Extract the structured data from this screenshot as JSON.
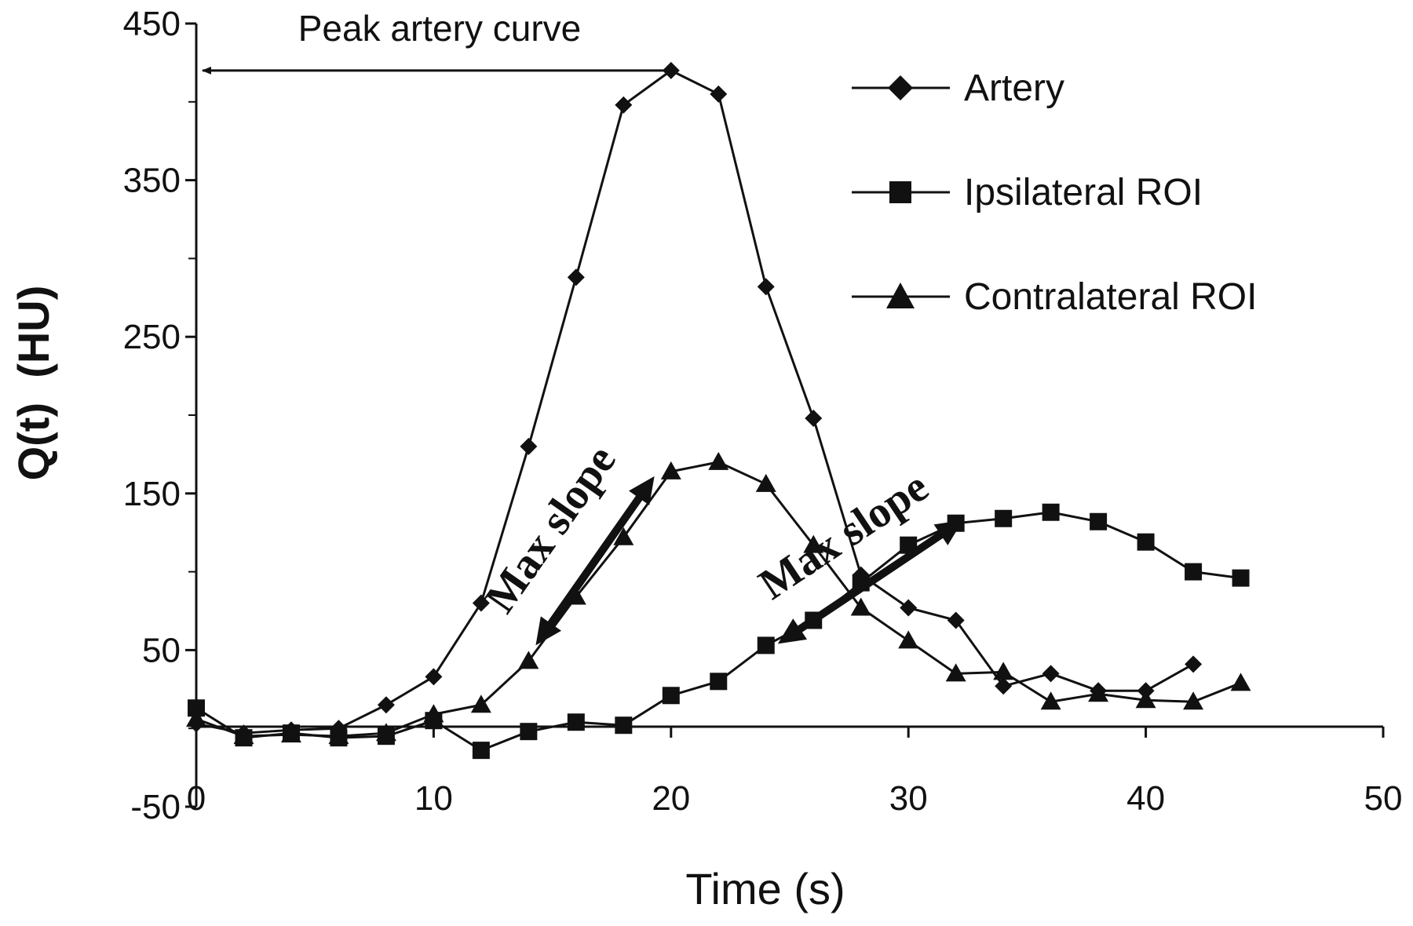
{
  "chart_data": {
    "type": "line",
    "title": "",
    "xlabel": "Time (s)",
    "ylabel": "Q(t)  (HU)",
    "xlim": [
      0,
      50
    ],
    "ylim": [
      -50,
      450
    ],
    "x_ticks": [
      0,
      10,
      20,
      30,
      40,
      50
    ],
    "y_ticks": [
      -50,
      50,
      150,
      250,
      350,
      450
    ],
    "x_tick_labels": [
      "0",
      "10",
      "20",
      "30",
      "40",
      "50"
    ],
    "y_tick_labels": [
      "-50",
      "50",
      "150",
      "250",
      "350",
      "450"
    ],
    "grid": false,
    "legend_position": "top-right",
    "series": [
      {
        "name": "Artery",
        "marker": "diamond",
        "color": "#111111",
        "x": [
          0,
          2,
          4,
          6,
          8,
          10,
          12,
          14,
          16,
          18,
          20,
          22,
          24,
          26,
          28,
          30,
          32,
          34,
          36,
          38,
          40,
          42
        ],
        "y": [
          3,
          -3,
          -1,
          0,
          15,
          33,
          80,
          180,
          288,
          398,
          420,
          405,
          282,
          198,
          98,
          77,
          69,
          27,
          35,
          24,
          24,
          41
        ]
      },
      {
        "name": "Ipsilateral ROI",
        "marker": "square",
        "color": "#111111",
        "x": [
          0,
          2,
          4,
          6,
          8,
          10,
          12,
          14,
          16,
          18,
          20,
          22,
          24,
          26,
          28,
          30,
          32,
          34,
          36,
          38,
          40,
          42,
          44
        ],
        "y": [
          13,
          -6,
          -3,
          -6,
          -5,
          5,
          -14,
          -2,
          4,
          2,
          21,
          30,
          53,
          69,
          93,
          117,
          131,
          134,
          138,
          132,
          119,
          100,
          96
        ]
      },
      {
        "name": "Contralateral ROI",
        "marker": "triangle",
        "color": "#111111",
        "x": [
          0,
          2,
          4,
          6,
          8,
          10,
          12,
          14,
          16,
          18,
          20,
          22,
          24,
          26,
          28,
          30,
          32,
          34,
          36,
          38,
          40,
          42,
          44
        ],
        "y": [
          6,
          -5,
          -4,
          -5,
          -3,
          9,
          15,
          43,
          84,
          122,
          164,
          170,
          156,
          117,
          77,
          56,
          35,
          36,
          17,
          22,
          18,
          17,
          29
        ]
      }
    ],
    "annotations": [
      {
        "text": "Peak artery curve",
        "type": "arrow",
        "from": [
          20,
          420
        ],
        "to": [
          0,
          420
        ]
      },
      {
        "text": "Max slope",
        "type": "double-arrow",
        "from": [
          14.3,
          53
        ],
        "to": [
          19.3,
          161
        ]
      },
      {
        "text": "Max slope",
        "type": "double-arrow",
        "from": [
          24.5,
          54
        ],
        "to": [
          32.3,
          133
        ]
      }
    ]
  }
}
